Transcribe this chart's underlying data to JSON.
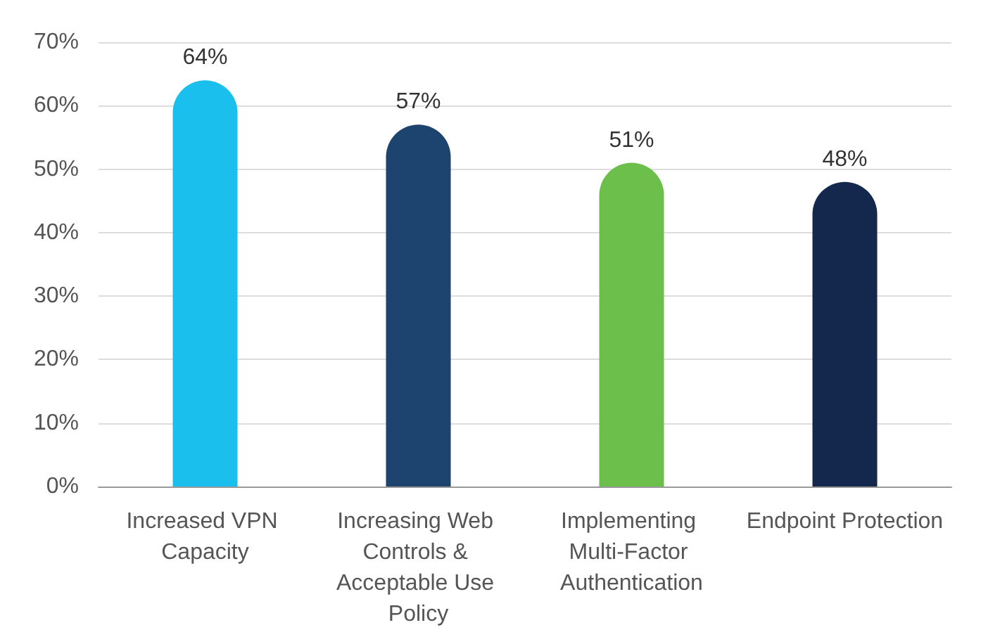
{
  "chart_data": {
    "type": "bar",
    "categories": [
      "Increased VPN Capacity",
      "Increasing Web Controls & Acceptable Use Policy",
      "Implementing Multi-Factor Authentication",
      "Endpoint Protection"
    ],
    "values": [
      64,
      57,
      51,
      48
    ],
    "colors": [
      "#1bbfed",
      "#1d436f",
      "#6cbf4b",
      "#13284c"
    ],
    "value_labels": [
      "64%",
      "57%",
      "51%",
      "48%"
    ],
    "ylim": [
      0,
      70
    ],
    "yticks": [
      {
        "value": 0,
        "label": "0%"
      },
      {
        "value": 10,
        "label": "10%"
      },
      {
        "value": 20,
        "label": "20%"
      },
      {
        "value": 30,
        "label": "30%"
      },
      {
        "value": 40,
        "label": "40%"
      },
      {
        "value": 50,
        "label": "50%"
      },
      {
        "value": 60,
        "label": "60%"
      },
      {
        "value": 70,
        "label": "70%"
      }
    ],
    "grid": "y"
  }
}
